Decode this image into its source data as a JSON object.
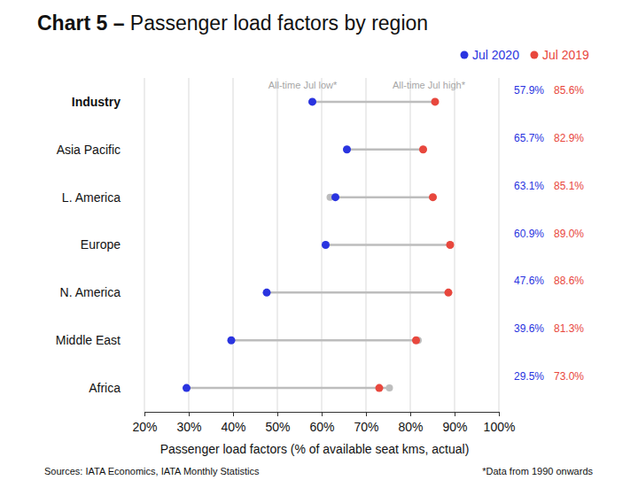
{
  "chart_data": {
    "type": "dumbbell",
    "title": "Chart 5 – Passenger load factors by region",
    "orientation": "horizontal",
    "categories": [
      "Industry",
      "Asia Pacific",
      "L. America",
      "Europe",
      "N. America",
      "Middle East",
      "Africa"
    ],
    "series": [
      {
        "name": "Jul 2020",
        "color": "#2a34e0",
        "marker": "circle",
        "values": [
          57.9,
          65.7,
          63.1,
          60.9,
          47.6,
          39.6,
          29.5
        ],
        "value_labels": [
          "57.9%",
          "65.7%",
          "63.1%",
          "60.9%",
          "47.6%",
          "39.6%",
          "29.5%"
        ]
      },
      {
        "name": "Jul 2019",
        "color": "#e8473d",
        "marker": "circle",
        "values": [
          85.6,
          82.9,
          85.1,
          89.0,
          88.6,
          81.3,
          73.0
        ],
        "value_labels": [
          "85.6%",
          "82.9%",
          "85.1%",
          "89.0%",
          "88.6%",
          "81.3%",
          "73.0%"
        ]
      }
    ],
    "all_time_low": {
      "label": "All-time Jul low*",
      "color": "#bdbdbd",
      "values": [
        57.9,
        65.7,
        61.9,
        60.9,
        47.6,
        39.6,
        29.5
      ]
    },
    "all_time_high": {
      "label": "All-time Jul high*",
      "color": "#bdbdbd",
      "values": [
        85.6,
        82.9,
        85.1,
        89.0,
        88.6,
        81.8,
        75.3
      ]
    },
    "xlabel": "Passenger load factors (% of available seat kms, actual)",
    "xlim": [
      20,
      100
    ],
    "xticks": [
      {
        "value": 20,
        "label": "20%"
      },
      {
        "value": 30,
        "label": "30%"
      },
      {
        "value": 40,
        "label": "40%"
      },
      {
        "value": 50,
        "label": "50%"
      },
      {
        "value": 60,
        "label": "60%"
      },
      {
        "value": 70,
        "label": "70%"
      },
      {
        "value": 80,
        "label": "80%"
      },
      {
        "value": 90,
        "label": "90%"
      },
      {
        "value": 100,
        "label": "100%"
      }
    ],
    "grid": true,
    "legend": "upper right",
    "data_labels": true,
    "source": "Sources: IATA Economics, IATA Monthly Statistics",
    "footnote": "*Data from 1990 onwards"
  }
}
